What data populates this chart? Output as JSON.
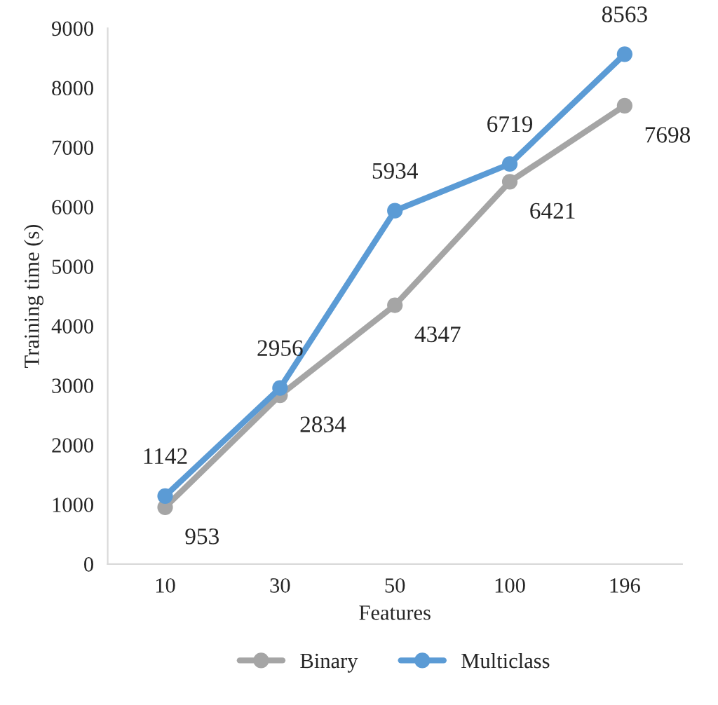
{
  "chart_data": {
    "type": "line",
    "xlabel": "Features",
    "ylabel": "Training time (s)",
    "categories": [
      "10",
      "30",
      "50",
      "100",
      "196"
    ],
    "series": [
      {
        "name": "Binary",
        "color": "#a5a5a5",
        "values": [
          953,
          2834,
          4347,
          6421,
          7698
        ]
      },
      {
        "name": "Multiclass",
        "color": "#5b9bd5",
        "values": [
          1142,
          2956,
          5934,
          6719,
          8563
        ]
      }
    ],
    "ylim": [
      0,
      9000
    ],
    "yticks": [
      0,
      1000,
      2000,
      3000,
      4000,
      5000,
      6000,
      7000,
      8000,
      9000
    ],
    "grid": false,
    "legend": "bottom",
    "marker": "circle",
    "line_style": "solid",
    "data_labels": true
  }
}
